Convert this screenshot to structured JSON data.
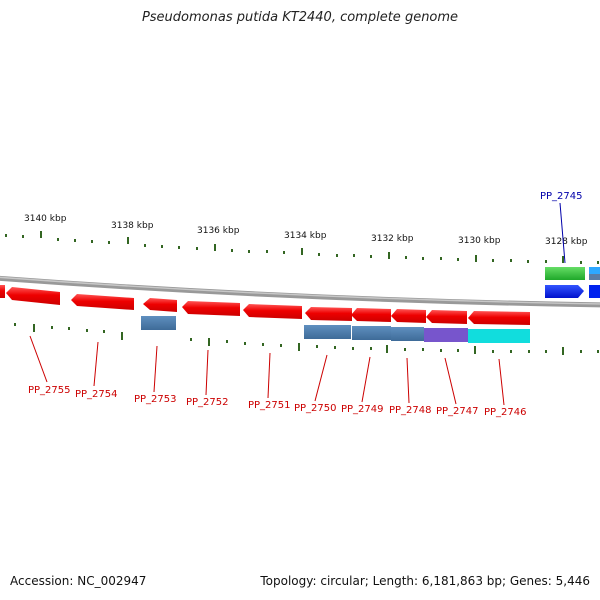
{
  "title": "Pseudomonas putida KT2440, complete genome",
  "footer": {
    "accession": "Accession: NC_002947",
    "summary": "Topology: circular; Length: 6,181,863 bp; Genes: 5,446"
  },
  "scale": {
    "labels": [
      "3140 kbp",
      "3138 kbp",
      "3136 kbp",
      "3134 kbp",
      "3132 kbp",
      "3130 kbp",
      "3128 kbp"
    ]
  },
  "colors": {
    "forward_gene": "#ee1111",
    "reverse_gene_blue": "#0022ee",
    "green_gene": "#22bb33",
    "cyan_gene": "#11dddd",
    "steel_blue": "#4477aa",
    "purple": "#7755cc",
    "tick": "#336622",
    "genome_line": "#8a8a8a",
    "red_label": "#cc0000",
    "blue_label": "#0000aa"
  },
  "genes": {
    "upper_label": "PP_2745",
    "lower_labels": [
      "PP_2755",
      "PP_2754",
      "PP_2753",
      "PP_2752",
      "PP_2751",
      "PP_2750",
      "PP_2749",
      "PP_2748",
      "PP_2747",
      "PP_2746"
    ]
  }
}
